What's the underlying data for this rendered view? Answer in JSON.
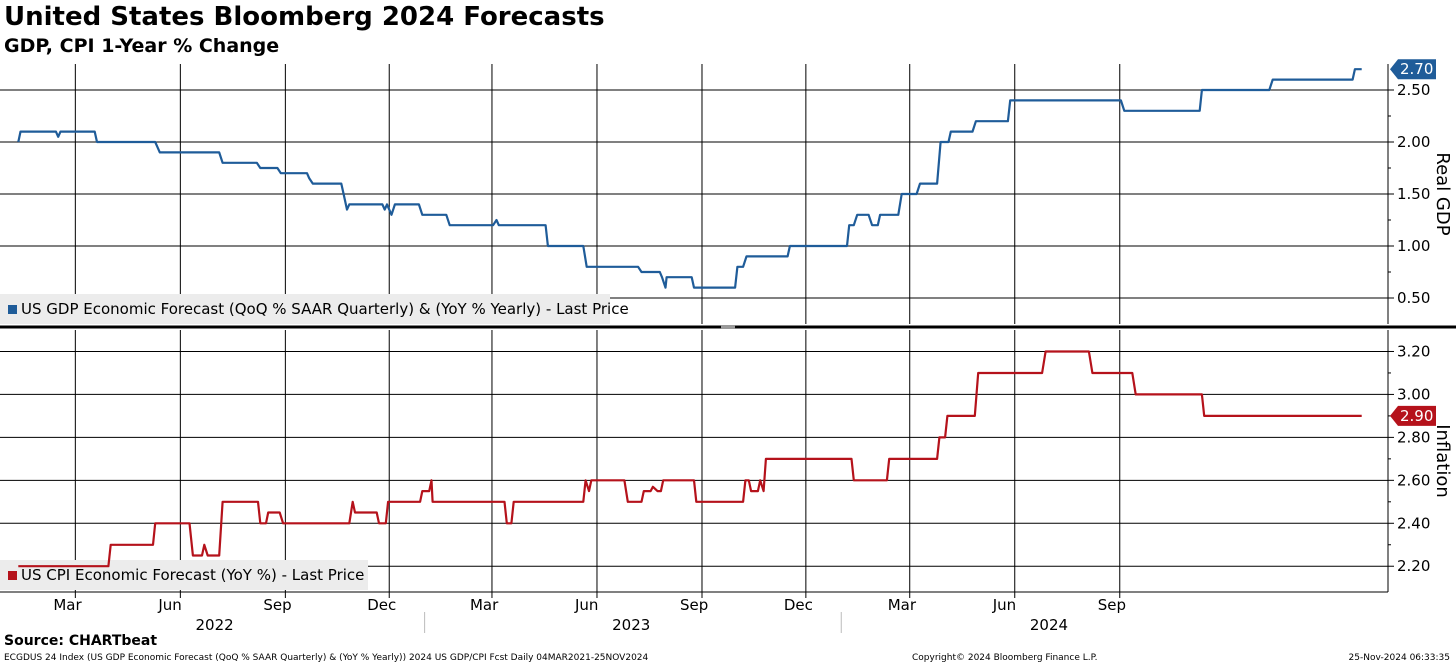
{
  "title": "United States Bloomberg 2024 Forecasts",
  "subtitle": "GDP, CPI 1-Year % Change",
  "source": "Source: CHARTbeat",
  "footer": {
    "left": "ECGDUS 24 Index (US GDP Economic Forecast (QoQ % SAAR Quarterly) & (YoY % Yearly)) 2024 US GDP/CPI Fcst  Daily 04MAR2021-25NOV2024",
    "mid": "Copyright© 2024 Bloomberg Finance L.P.",
    "right": "25-Nov-2024 06:33:35"
  },
  "colors": {
    "gdp": "#1f5c99",
    "cpi": "#b5121b",
    "grid": "#000000",
    "legend_bg": "#ececec"
  },
  "chart_data": [
    {
      "type": "line",
      "panel": "top",
      "ylabel": "Real GDP",
      "ylim": [
        0.25,
        2.75
      ],
      "yticks": [
        "0.50",
        "1.00",
        "1.50",
        "2.00",
        "2.50"
      ],
      "last_value": "2.70",
      "legend": "US GDP Economic Forecast (QoQ % SAAR Quarterly) & (YoY % Yearly) - Last Price",
      "series": [
        {
          "name": "US GDP Economic Forecast (QoQ % SAAR Quarterly) & (YoY % Yearly) - Last Price",
          "points": [
            [
              "2022-01-10",
              2.0
            ],
            [
              "2022-01-12",
              2.1
            ],
            [
              "2022-02-12",
              2.1
            ],
            [
              "2022-02-14",
              2.05
            ],
            [
              "2022-02-16",
              2.1
            ],
            [
              "2022-03-18",
              2.1
            ],
            [
              "2022-03-20",
              2.0
            ],
            [
              "2022-05-10",
              2.0
            ],
            [
              "2022-05-12",
              1.95
            ],
            [
              "2022-05-14",
              1.9
            ],
            [
              "2022-05-18",
              1.9
            ],
            [
              "2022-07-05",
              1.9
            ],
            [
              "2022-07-08",
              1.8
            ],
            [
              "2022-08-07",
              1.8
            ],
            [
              "2022-08-10",
              1.75
            ],
            [
              "2022-08-25",
              1.75
            ],
            [
              "2022-08-28",
              1.7
            ],
            [
              "2022-09-20",
              1.7
            ],
            [
              "2022-09-22",
              1.65
            ],
            [
              "2022-09-25",
              1.6
            ],
            [
              "2022-10-20",
              1.6
            ],
            [
              "2022-10-22",
              1.5
            ],
            [
              "2022-10-25",
              1.35
            ],
            [
              "2022-10-27",
              1.4
            ],
            [
              "2022-11-25",
              1.4
            ],
            [
              "2022-11-27",
              1.35
            ],
            [
              "2022-11-29",
              1.4
            ],
            [
              "2022-12-03",
              1.3
            ],
            [
              "2022-12-06",
              1.4
            ],
            [
              "2022-12-27",
              1.4
            ],
            [
              "2022-12-30",
              1.3
            ],
            [
              "2023-01-20",
              1.3
            ],
            [
              "2023-01-23",
              1.2
            ],
            [
              "2023-03-02",
              1.2
            ],
            [
              "2023-03-05",
              1.25
            ],
            [
              "2023-03-07",
              1.2
            ],
            [
              "2023-04-17",
              1.2
            ],
            [
              "2023-04-19",
              1.0
            ],
            [
              "2023-05-20",
              1.0
            ],
            [
              "2023-05-23",
              0.8
            ],
            [
              "2023-07-07",
              0.8
            ],
            [
              "2023-07-10",
              0.75
            ],
            [
              "2023-07-26",
              0.75
            ],
            [
              "2023-07-28",
              0.7
            ],
            [
              "2023-07-31",
              0.6
            ],
            [
              "2023-08-01",
              0.7
            ],
            [
              "2023-08-23",
              0.7
            ],
            [
              "2023-08-25",
              0.6
            ],
            [
              "2023-09-30",
              0.6
            ],
            [
              "2023-10-02",
              0.8
            ],
            [
              "2023-10-07",
              0.8
            ],
            [
              "2023-10-10",
              0.9
            ],
            [
              "2023-11-15",
              0.9
            ],
            [
              "2023-11-17",
              1.0
            ],
            [
              "2024-01-06",
              1.0
            ],
            [
              "2024-01-08",
              1.2
            ],
            [
              "2024-01-12",
              1.2
            ],
            [
              "2024-01-15",
              1.3
            ],
            [
              "2024-01-25",
              1.3
            ],
            [
              "2024-01-28",
              1.2
            ],
            [
              "2024-02-02",
              1.2
            ],
            [
              "2024-02-04",
              1.3
            ],
            [
              "2024-02-20",
              1.3
            ],
            [
              "2024-02-23",
              1.5
            ],
            [
              "2024-03-07",
              1.5
            ],
            [
              "2024-03-10",
              1.6
            ],
            [
              "2024-03-25",
              1.6
            ],
            [
              "2024-03-28",
              2.0
            ],
            [
              "2024-04-04",
              2.0
            ],
            [
              "2024-04-06",
              2.1
            ],
            [
              "2024-04-25",
              2.1
            ],
            [
              "2024-04-28",
              2.2
            ],
            [
              "2024-05-26",
              2.2
            ],
            [
              "2024-05-28",
              2.4
            ],
            [
              "2024-09-02",
              2.4
            ],
            [
              "2024-09-05",
              2.3
            ],
            [
              "2024-11-10",
              2.3
            ],
            [
              "2024-11-12",
              2.5
            ],
            [
              "2025-01-10",
              2.5
            ],
            [
              "2025-01-13",
              2.6
            ],
            [
              "2025-03-24",
              2.6
            ],
            [
              "2025-03-26",
              2.7
            ],
            [
              "2025-04-01",
              2.7
            ]
          ]
        }
      ]
    },
    {
      "type": "line",
      "panel": "bottom",
      "ylabel": "Inflation",
      "ylim": [
        2.08,
        3.3
      ],
      "yticks": [
        "2.20",
        "2.40",
        "2.60",
        "2.80",
        "3.00",
        "3.20"
      ],
      "last_value": "2.90",
      "legend": "US CPI Economic Forecast (YoY %) - Last Price",
      "series": [
        {
          "name": "US CPI Economic Forecast (YoY %) - Last Price",
          "points": [
            [
              "2022-01-10",
              2.2
            ],
            [
              "2022-03-30",
              2.2
            ],
            [
              "2022-04-01",
              2.3
            ],
            [
              "2022-05-08",
              2.3
            ],
            [
              "2022-05-10",
              2.4
            ],
            [
              "2022-06-09",
              2.4
            ],
            [
              "2022-06-12",
              2.25
            ],
            [
              "2022-06-20",
              2.25
            ],
            [
              "2022-06-22",
              2.3
            ],
            [
              "2022-06-25",
              2.25
            ],
            [
              "2022-07-05",
              2.25
            ],
            [
              "2022-07-08",
              2.5
            ],
            [
              "2022-08-08",
              2.5
            ],
            [
              "2022-08-10",
              2.4
            ],
            [
              "2022-08-15",
              2.4
            ],
            [
              "2022-08-17",
              2.45
            ],
            [
              "2022-08-27",
              2.45
            ],
            [
              "2022-08-30",
              2.4
            ],
            [
              "2022-10-27",
              2.4
            ],
            [
              "2022-10-30",
              2.5
            ],
            [
              "2022-11-01",
              2.45
            ],
            [
              "2022-11-20",
              2.45
            ],
            [
              "2022-11-22",
              2.4
            ],
            [
              "2022-11-28",
              2.4
            ],
            [
              "2022-11-30",
              2.5
            ],
            [
              "2022-12-28",
              2.5
            ],
            [
              "2022-12-30",
              2.55
            ],
            [
              "2023-01-05",
              2.55
            ],
            [
              "2023-01-07",
              2.6
            ],
            [
              "2023-01-08",
              2.5
            ],
            [
              "2023-03-12",
              2.5
            ],
            [
              "2023-03-14",
              2.4
            ],
            [
              "2023-03-18",
              2.4
            ],
            [
              "2023-03-20",
              2.5
            ],
            [
              "2023-05-20",
              2.5
            ],
            [
              "2023-05-22",
              2.6
            ],
            [
              "2023-05-25",
              2.55
            ],
            [
              "2023-05-27",
              2.6
            ],
            [
              "2023-06-25",
              2.6
            ],
            [
              "2023-06-28",
              2.5
            ],
            [
              "2023-07-10",
              2.5
            ],
            [
              "2023-07-12",
              2.55
            ],
            [
              "2023-07-18",
              2.55
            ],
            [
              "2023-07-20",
              2.57
            ],
            [
              "2023-07-24",
              2.55
            ],
            [
              "2023-07-27",
              2.55
            ],
            [
              "2023-07-29",
              2.6
            ],
            [
              "2023-08-25",
              2.6
            ],
            [
              "2023-08-27",
              2.5
            ],
            [
              "2023-10-07",
              2.5
            ],
            [
              "2023-10-09",
              2.6
            ],
            [
              "2023-10-12",
              2.6
            ],
            [
              "2023-10-14",
              2.55
            ],
            [
              "2023-10-20",
              2.55
            ],
            [
              "2023-10-22",
              2.6
            ],
            [
              "2023-10-25",
              2.55
            ],
            [
              "2023-10-27",
              2.7
            ],
            [
              "2024-01-10",
              2.7
            ],
            [
              "2024-01-12",
              2.6
            ],
            [
              "2024-02-10",
              2.6
            ],
            [
              "2024-02-12",
              2.7
            ],
            [
              "2024-03-25",
              2.7
            ],
            [
              "2024-03-27",
              2.8
            ],
            [
              "2024-04-01",
              2.8
            ],
            [
              "2024-04-03",
              2.9
            ],
            [
              "2024-04-27",
              2.9
            ],
            [
              "2024-04-30",
              3.1
            ],
            [
              "2024-06-25",
              3.1
            ],
            [
              "2024-06-28",
              3.2
            ],
            [
              "2024-08-05",
              3.2
            ],
            [
              "2024-08-08",
              3.1
            ],
            [
              "2024-09-12",
              3.1
            ],
            [
              "2024-09-15",
              3.0
            ],
            [
              "2024-11-12",
              3.0
            ],
            [
              "2024-11-14",
              2.9
            ],
            [
              "2025-04-01",
              2.9
            ]
          ]
        }
      ]
    }
  ],
  "x_axis": {
    "domain": [
      "2021-12-25",
      "2025-04-24"
    ],
    "month_ticks": [
      {
        "label": "Mar",
        "date": "2022-03-01"
      },
      {
        "label": "Jun",
        "date": "2022-06-01"
      },
      {
        "label": "Sep",
        "date": "2022-09-01"
      },
      {
        "label": "Dec",
        "date": "2022-12-01"
      },
      {
        "label": "Mar",
        "date": "2023-03-01"
      },
      {
        "label": "Jun",
        "date": "2023-06-01"
      },
      {
        "label": "Sep",
        "date": "2023-09-01"
      },
      {
        "label": "Dec",
        "date": "2023-12-01"
      },
      {
        "label": "Mar",
        "date": "2024-03-01"
      },
      {
        "label": "Jun",
        "date": "2024-06-01"
      },
      {
        "label": "Sep",
        "date": "2024-09-01"
      }
    ],
    "year_labels": [
      {
        "label": "2022",
        "center": "2022-07-01"
      },
      {
        "label": "2023",
        "center": "2023-07-01"
      },
      {
        "label": "2024",
        "center": "2024-07-01"
      }
    ],
    "year_separators": [
      "2023-01-01",
      "2024-01-01"
    ]
  }
}
